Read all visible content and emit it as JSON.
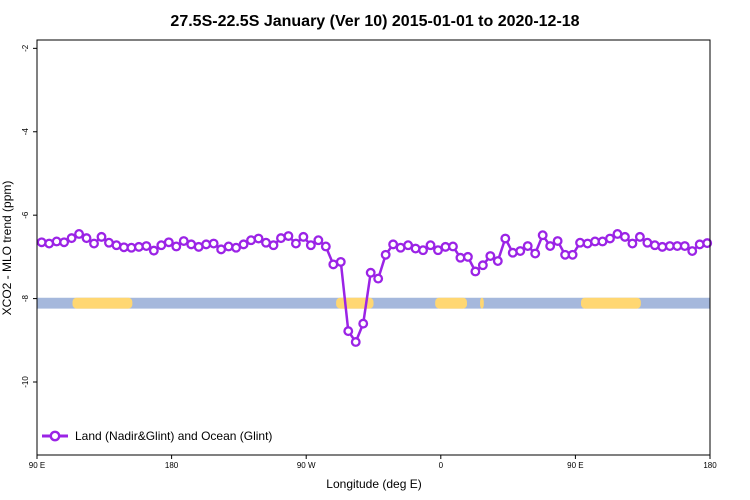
{
  "chart_data": {
    "type": "line",
    "title": "27.5S-22.5S January (Ver 10)   2015-01-01 to 2020-12-18",
    "xlabel": "Longitude (deg E)",
    "ylabel": "XCO2 - MLO trend (ppm)",
    "xlim": [
      90,
      450
    ],
    "ylim": [
      -11.75,
      -1.8
    ],
    "x_ticks": [
      {
        "value": 90,
        "label": "90 E"
      },
      {
        "value": 162,
        "label": "180"
      },
      {
        "value": 234,
        "label": "90 W"
      },
      {
        "value": 306,
        "label": "0"
      },
      {
        "value": 378,
        "label": "90 E"
      },
      {
        "value": 450,
        "label": "180"
      }
    ],
    "y_ticks": [
      {
        "value": -2,
        "label": "-2"
      },
      {
        "value": -4,
        "label": "-4"
      },
      {
        "value": -6,
        "label": "-6"
      },
      {
        "value": -8,
        "label": "-8"
      },
      {
        "value": -10,
        "label": "-10"
      }
    ],
    "grid": false,
    "legend_position": "bottom-left",
    "surface_band": {
      "y_range": [
        -8.24,
        -7.98
      ],
      "ocean_color": "#a5b8dc",
      "land_color": "#ffd772",
      "land_segments": [
        [
          109,
          141
        ],
        [
          250,
          270
        ],
        [
          303,
          320
        ],
        [
          327,
          329
        ],
        [
          381,
          413
        ]
      ]
    },
    "series": [
      {
        "name": "Land (Nadir&Glint) and Ocean (Glint)",
        "color": "#9b23e6",
        "x": [
          92.5,
          96.5,
          100.5,
          104.5,
          108.5,
          112.5,
          116.5,
          120.5,
          124.5,
          128.5,
          132.5,
          136.5,
          140.5,
          144.5,
          148.5,
          152.5,
          156.5,
          160.5,
          164.5,
          168.5,
          172.5,
          176.5,
          180.5,
          184.5,
          188.5,
          192.5,
          196.5,
          200.5,
          204.5,
          208.5,
          212.5,
          216.5,
          220.5,
          224.5,
          228.5,
          232.5,
          236.5,
          240.5,
          244.5,
          248.5,
          252.5,
          256.5,
          260.5,
          264.5,
          268.5,
          272.5,
          276.5,
          280.5,
          284.5,
          288.5,
          292.5,
          296.5,
          300.5,
          304.5,
          308.5,
          312.5,
          316.5,
          320.5,
          324.5,
          328.5,
          332.5,
          336.5,
          340.5,
          344.5,
          348.5,
          352.5,
          356.5,
          360.5,
          364.5,
          368.5,
          372.5,
          376.5,
          380.5,
          384.5,
          388.5,
          392.5,
          396.5,
          400.5,
          404.5,
          408.5,
          412.5,
          416.5,
          420.5,
          424.5,
          428.5,
          432.5,
          436.5,
          440.5,
          444.5,
          448.5
        ],
        "values": [
          -6.65,
          -6.68,
          -6.63,
          -6.65,
          -6.55,
          -6.45,
          -6.55,
          -6.68,
          -6.52,
          -6.66,
          -6.72,
          -6.77,
          -6.78,
          -6.76,
          -6.74,
          -6.85,
          -6.72,
          -6.65,
          -6.75,
          -6.62,
          -6.7,
          -6.76,
          -6.7,
          -6.68,
          -6.82,
          -6.75,
          -6.78,
          -6.7,
          -6.6,
          -6.56,
          -6.66,
          -6.72,
          -6.55,
          -6.5,
          -6.68,
          -6.52,
          -6.72,
          -6.6,
          -6.75,
          -7.18,
          -7.12,
          -8.78,
          -9.04,
          -8.6,
          -7.38,
          -7.52,
          -6.95,
          -6.7,
          -6.78,
          -6.72,
          -6.8,
          -6.84,
          -6.72,
          -6.84,
          -6.76,
          -6.75,
          -7.02,
          -7.0,
          -7.35,
          -7.2,
          -6.98,
          -7.1,
          -6.56,
          -6.9,
          -6.86,
          -6.74,
          -6.92,
          -6.48,
          -6.74,
          -6.62,
          -6.95,
          -6.95,
          -6.66,
          -6.68,
          -6.63,
          -6.63,
          -6.56,
          -6.45,
          -6.52,
          -6.68,
          -6.52,
          -6.66,
          -6.72,
          -6.76,
          -6.74,
          -6.74,
          -6.74,
          -6.86,
          -6.7,
          -6.67
        ]
      }
    ]
  }
}
